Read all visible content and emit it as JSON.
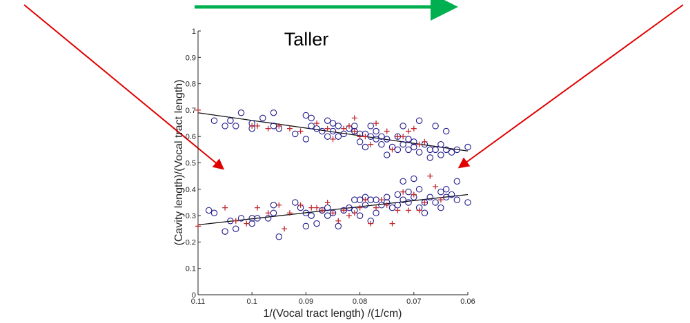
{
  "banner": {
    "label": "Taller",
    "arrow_color": "#00b050",
    "pointer_color": "#e00000"
  },
  "chart_data": {
    "type": "scatter",
    "title": "",
    "xlabel": "1/(Vocal tract length) /(1/cm)",
    "ylabel": "(Cavity length)/(Vocal tract length)",
    "xlim": [
      0.11,
      0.06
    ],
    "x_reversed": true,
    "ylim": [
      0,
      1
    ],
    "grid": false,
    "legend": "none",
    "xticks": [
      0.11,
      0.1,
      0.09,
      0.08,
      0.07,
      0.06
    ],
    "xtick_labels": [
      "0.11",
      "0.1",
      "0.09",
      "0.08",
      "0.07",
      "0.06"
    ],
    "yticks": [
      0,
      0.1,
      0.2,
      0.3,
      0.4,
      0.5,
      0.6,
      0.7,
      0.8,
      0.9,
      1
    ],
    "ytick_labels": [
      "0",
      "0.1",
      "0.2",
      "0.3",
      "0.4",
      "0.5",
      "0.6",
      "0.7",
      "0.8",
      "0.9",
      "1"
    ],
    "series": [
      {
        "marker": "o",
        "color": "#1f1a8c",
        "points": [
          [
            0.107,
            0.66
          ],
          [
            0.105,
            0.64
          ],
          [
            0.104,
            0.66
          ],
          [
            0.103,
            0.64
          ],
          [
            0.102,
            0.69
          ],
          [
            0.1,
            0.65
          ],
          [
            0.1,
            0.63
          ],
          [
            0.098,
            0.67
          ],
          [
            0.096,
            0.64
          ],
          [
            0.096,
            0.69
          ],
          [
            0.095,
            0.63
          ],
          [
            0.092,
            0.61
          ],
          [
            0.09,
            0.68
          ],
          [
            0.09,
            0.59
          ],
          [
            0.089,
            0.64
          ],
          [
            0.089,
            0.67
          ],
          [
            0.088,
            0.63
          ],
          [
            0.087,
            0.62
          ],
          [
            0.086,
            0.66
          ],
          [
            0.086,
            0.6
          ],
          [
            0.085,
            0.62
          ],
          [
            0.085,
            0.65
          ],
          [
            0.084,
            0.64
          ],
          [
            0.084,
            0.6
          ],
          [
            0.083,
            0.61
          ],
          [
            0.082,
            0.63
          ],
          [
            0.081,
            0.64
          ],
          [
            0.081,
            0.62
          ],
          [
            0.08,
            0.61
          ],
          [
            0.08,
            0.58
          ],
          [
            0.079,
            0.61
          ],
          [
            0.079,
            0.56
          ],
          [
            0.078,
            0.64
          ],
          [
            0.078,
            0.6
          ],
          [
            0.077,
            0.62
          ],
          [
            0.077,
            0.59
          ],
          [
            0.076,
            0.57
          ],
          [
            0.076,
            0.6
          ],
          [
            0.075,
            0.59
          ],
          [
            0.075,
            0.53
          ],
          [
            0.074,
            0.56
          ],
          [
            0.073,
            0.6
          ],
          [
            0.073,
            0.55
          ],
          [
            0.072,
            0.64
          ],
          [
            0.072,
            0.57
          ],
          [
            0.071,
            0.59
          ],
          [
            0.071,
            0.55
          ],
          [
            0.07,
            0.58
          ],
          [
            0.07,
            0.56
          ],
          [
            0.069,
            0.54
          ],
          [
            0.069,
            0.66
          ],
          [
            0.068,
            0.57
          ],
          [
            0.067,
            0.55
          ],
          [
            0.067,
            0.52
          ],
          [
            0.066,
            0.64
          ],
          [
            0.066,
            0.55
          ],
          [
            0.065,
            0.57
          ],
          [
            0.065,
            0.53
          ],
          [
            0.064,
            0.62
          ],
          [
            0.064,
            0.55
          ],
          [
            0.063,
            0.54
          ],
          [
            0.062,
            0.55
          ],
          [
            0.06,
            0.56
          ],
          [
            0.108,
            0.32
          ],
          [
            0.107,
            0.31
          ],
          [
            0.105,
            0.24
          ],
          [
            0.104,
            0.28
          ],
          [
            0.103,
            0.25
          ],
          [
            0.102,
            0.29
          ],
          [
            0.1,
            0.29
          ],
          [
            0.1,
            0.27
          ],
          [
            0.099,
            0.29
          ],
          [
            0.097,
            0.29
          ],
          [
            0.096,
            0.31
          ],
          [
            0.096,
            0.34
          ],
          [
            0.095,
            0.22
          ],
          [
            0.092,
            0.35
          ],
          [
            0.091,
            0.33
          ],
          [
            0.09,
            0.26
          ],
          [
            0.09,
            0.31
          ],
          [
            0.089,
            0.3
          ],
          [
            0.088,
            0.27
          ],
          [
            0.087,
            0.32
          ],
          [
            0.086,
            0.33
          ],
          [
            0.086,
            0.3
          ],
          [
            0.085,
            0.31
          ],
          [
            0.084,
            0.26
          ],
          [
            0.083,
            0.32
          ],
          [
            0.082,
            0.33
          ],
          [
            0.081,
            0.36
          ],
          [
            0.081,
            0.32
          ],
          [
            0.08,
            0.36
          ],
          [
            0.08,
            0.3
          ],
          [
            0.079,
            0.37
          ],
          [
            0.079,
            0.34
          ],
          [
            0.078,
            0.28
          ],
          [
            0.078,
            0.36
          ],
          [
            0.077,
            0.31
          ],
          [
            0.077,
            0.36
          ],
          [
            0.076,
            0.34
          ],
          [
            0.075,
            0.37
          ],
          [
            0.075,
            0.35
          ],
          [
            0.074,
            0.33
          ],
          [
            0.073,
            0.38
          ],
          [
            0.073,
            0.34
          ],
          [
            0.072,
            0.43
          ],
          [
            0.072,
            0.36
          ],
          [
            0.071,
            0.39
          ],
          [
            0.071,
            0.35
          ],
          [
            0.07,
            0.44
          ],
          [
            0.07,
            0.37
          ],
          [
            0.069,
            0.4
          ],
          [
            0.069,
            0.33
          ],
          [
            0.068,
            0.35
          ],
          [
            0.068,
            0.31
          ],
          [
            0.067,
            0.37
          ],
          [
            0.066,
            0.35
          ],
          [
            0.065,
            0.39
          ],
          [
            0.065,
            0.33
          ],
          [
            0.064,
            0.37
          ],
          [
            0.064,
            0.4
          ],
          [
            0.063,
            0.38
          ],
          [
            0.062,
            0.43
          ],
          [
            0.062,
            0.36
          ],
          [
            0.06,
            0.35
          ]
        ]
      },
      {
        "marker": "+",
        "color": "#c0282d",
        "points": [
          [
            0.11,
            0.7
          ],
          [
            0.1,
            0.64
          ],
          [
            0.099,
            0.64
          ],
          [
            0.097,
            0.63
          ],
          [
            0.095,
            0.64
          ],
          [
            0.093,
            0.63
          ],
          [
            0.091,
            0.62
          ],
          [
            0.088,
            0.65
          ],
          [
            0.086,
            0.63
          ],
          [
            0.085,
            0.59
          ],
          [
            0.083,
            0.63
          ],
          [
            0.082,
            0.64
          ],
          [
            0.081,
            0.67
          ],
          [
            0.081,
            0.62
          ],
          [
            0.08,
            0.6
          ],
          [
            0.079,
            0.6
          ],
          [
            0.078,
            0.57
          ],
          [
            0.077,
            0.65
          ],
          [
            0.075,
            0.62
          ],
          [
            0.074,
            0.55
          ],
          [
            0.073,
            0.6
          ],
          [
            0.072,
            0.6
          ],
          [
            0.071,
            0.62
          ],
          [
            0.07,
            0.63
          ],
          [
            0.069,
            0.57
          ],
          [
            0.068,
            0.58
          ],
          [
            0.11,
            0.26
          ],
          [
            0.105,
            0.33
          ],
          [
            0.103,
            0.28
          ],
          [
            0.101,
            0.27
          ],
          [
            0.099,
            0.33
          ],
          [
            0.097,
            0.31
          ],
          [
            0.095,
            0.34
          ],
          [
            0.094,
            0.25
          ],
          [
            0.093,
            0.31
          ],
          [
            0.091,
            0.34
          ],
          [
            0.089,
            0.33
          ],
          [
            0.088,
            0.33
          ],
          [
            0.087,
            0.32
          ],
          [
            0.086,
            0.35
          ],
          [
            0.085,
            0.31
          ],
          [
            0.084,
            0.28
          ],
          [
            0.083,
            0.32
          ],
          [
            0.082,
            0.3
          ],
          [
            0.081,
            0.31
          ],
          [
            0.08,
            0.33
          ],
          [
            0.079,
            0.36
          ],
          [
            0.078,
            0.27
          ],
          [
            0.077,
            0.33
          ],
          [
            0.076,
            0.36
          ],
          [
            0.075,
            0.34
          ],
          [
            0.074,
            0.27
          ],
          [
            0.073,
            0.32
          ],
          [
            0.072,
            0.39
          ],
          [
            0.071,
            0.32
          ],
          [
            0.07,
            0.38
          ],
          [
            0.069,
            0.32
          ],
          [
            0.068,
            0.35
          ],
          [
            0.067,
            0.45
          ],
          [
            0.066,
            0.41
          ],
          [
            0.065,
            0.36
          ]
        ]
      }
    ],
    "trend_lines": [
      {
        "x": [
          0.11,
          0.06
        ],
        "y": [
          0.69,
          0.545
        ]
      },
      {
        "x": [
          0.11,
          0.06
        ],
        "y": [
          0.265,
          0.38
        ]
      }
    ]
  }
}
